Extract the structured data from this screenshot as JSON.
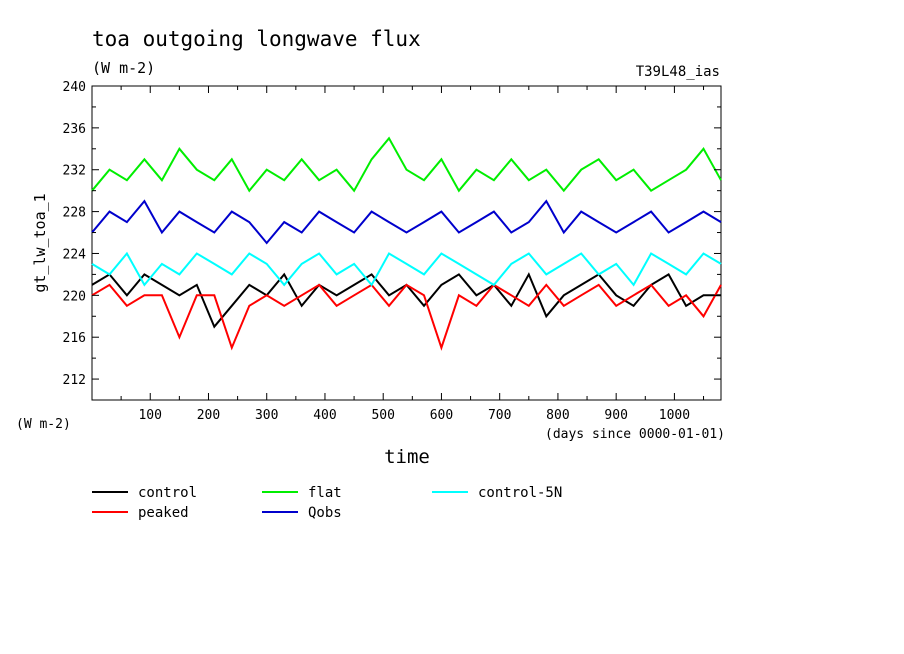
{
  "chart_data": {
    "type": "line",
    "title": "toa outgoing longwave flux",
    "subtitle": "(W m-2)",
    "tag": "T39L48_ias",
    "xlabel": "time",
    "xunits": "(days since 0000-01-01)",
    "ylabel": "gt_lw_toa_1",
    "yunits": "(W m-2)",
    "xlim": [
      0,
      1080
    ],
    "ylim": [
      210,
      240
    ],
    "xticks": [
      100,
      200,
      300,
      400,
      500,
      600,
      700,
      800,
      900,
      1000
    ],
    "yticks": [
      212,
      216,
      220,
      224,
      228,
      232,
      236,
      240
    ],
    "grid": false,
    "legend_position": "bottom",
    "series": [
      {
        "name": "control",
        "color": "#000000",
        "x": [
          0,
          30,
          60,
          90,
          120,
          150,
          180,
          210,
          240,
          270,
          300,
          330,
          360,
          390,
          420,
          450,
          480,
          510,
          540,
          570,
          600,
          630,
          660,
          690,
          720,
          750,
          780,
          810,
          840,
          870,
          900,
          930,
          960,
          990,
          1020,
          1050,
          1080
        ],
        "y": [
          221,
          222,
          220,
          222,
          221,
          220,
          221,
          217,
          219,
          221,
          220,
          222,
          219,
          221,
          220,
          221,
          222,
          220,
          221,
          219,
          221,
          222,
          220,
          221,
          219,
          222,
          218,
          220,
          221,
          222,
          220,
          219,
          221,
          222,
          219,
          220,
          220
        ]
      },
      {
        "name": "peaked",
        "color": "#ff0000",
        "x": [
          0,
          30,
          60,
          90,
          120,
          150,
          180,
          210,
          240,
          270,
          300,
          330,
          360,
          390,
          420,
          450,
          480,
          510,
          540,
          570,
          600,
          630,
          660,
          690,
          720,
          750,
          780,
          810,
          840,
          870,
          900,
          930,
          960,
          990,
          1020,
          1050,
          1080
        ],
        "y": [
          220,
          221,
          219,
          220,
          220,
          216,
          220,
          220,
          215,
          219,
          220,
          219,
          220,
          221,
          219,
          220,
          221,
          219,
          221,
          220,
          215,
          220,
          219,
          221,
          220,
          219,
          221,
          219,
          220,
          221,
          219,
          220,
          221,
          219,
          220,
          218,
          221
        ]
      },
      {
        "name": "flat",
        "color": "#00ee00",
        "x": [
          0,
          30,
          60,
          90,
          120,
          150,
          180,
          210,
          240,
          270,
          300,
          330,
          360,
          390,
          420,
          450,
          480,
          510,
          540,
          570,
          600,
          630,
          660,
          690,
          720,
          750,
          780,
          810,
          840,
          870,
          900,
          930,
          960,
          990,
          1020,
          1050,
          1080
        ],
        "y": [
          230,
          232,
          231,
          233,
          231,
          234,
          232,
          231,
          233,
          230,
          232,
          231,
          233,
          231,
          232,
          230,
          233,
          235,
          232,
          231,
          233,
          230,
          232,
          231,
          233,
          231,
          232,
          230,
          232,
          233,
          231,
          232,
          230,
          231,
          232,
          234,
          231
        ]
      },
      {
        "name": "Qobs",
        "color": "#0000cc",
        "x": [
          0,
          30,
          60,
          90,
          120,
          150,
          180,
          210,
          240,
          270,
          300,
          330,
          360,
          390,
          420,
          450,
          480,
          510,
          540,
          570,
          600,
          630,
          660,
          690,
          720,
          750,
          780,
          810,
          840,
          870,
          900,
          930,
          960,
          990,
          1020,
          1050,
          1080
        ],
        "y": [
          226,
          228,
          227,
          229,
          226,
          228,
          227,
          226,
          228,
          227,
          225,
          227,
          226,
          228,
          227,
          226,
          228,
          227,
          226,
          227,
          228,
          226,
          227,
          228,
          226,
          227,
          229,
          226,
          228,
          227,
          226,
          227,
          228,
          226,
          227,
          228,
          227
        ]
      },
      {
        "name": "control-5N",
        "color": "#00ffff",
        "x": [
          0,
          30,
          60,
          90,
          120,
          150,
          180,
          210,
          240,
          270,
          300,
          330,
          360,
          390,
          420,
          450,
          480,
          510,
          540,
          570,
          600,
          630,
          660,
          690,
          720,
          750,
          780,
          810,
          840,
          870,
          900,
          930,
          960,
          990,
          1020,
          1050,
          1080
        ],
        "y": [
          223,
          222,
          224,
          221,
          223,
          222,
          224,
          223,
          222,
          224,
          223,
          221,
          223,
          224,
          222,
          223,
          221,
          224,
          223,
          222,
          224,
          223,
          222,
          221,
          223,
          224,
          222,
          223,
          224,
          222,
          223,
          221,
          224,
          223,
          222,
          224,
          223
        ]
      }
    ]
  }
}
